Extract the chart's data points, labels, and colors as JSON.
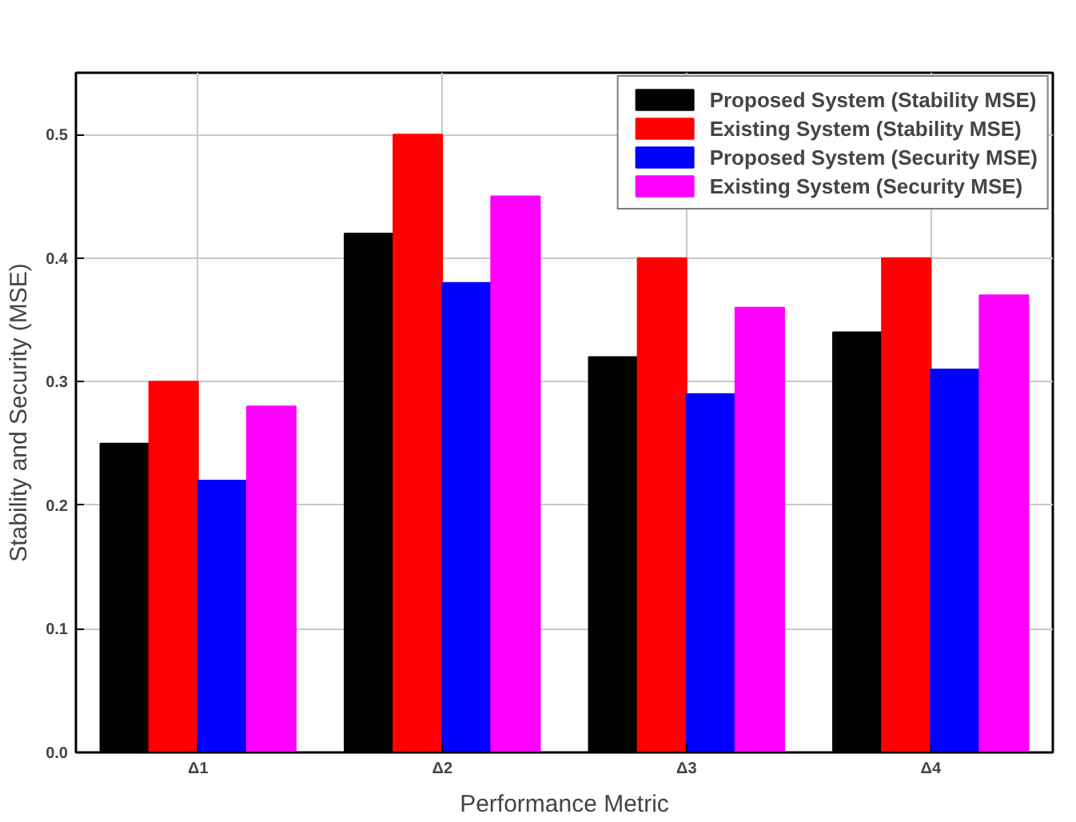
{
  "chart_data": {
    "type": "bar",
    "xlabel": "Performance Metric",
    "ylabel": "Stability and Security (MSE)",
    "categories": [
      "Δ1",
      "Δ2",
      "Δ3",
      "Δ4"
    ],
    "series": [
      {
        "name": "Proposed System (Stability MSE)",
        "color": "#000000",
        "values": [
          0.25,
          0.42,
          0.32,
          0.34
        ]
      },
      {
        "name": "Existing System (Stability MSE)",
        "color": "#ff0000",
        "values": [
          0.3,
          0.5,
          0.4,
          0.4
        ]
      },
      {
        "name": "Proposed System (Security MSE)",
        "color": "#0000ff",
        "values": [
          0.22,
          0.38,
          0.29,
          0.31
        ]
      },
      {
        "name": "Existing System (Security MSE)",
        "color": "#ff00ff",
        "values": [
          0.28,
          0.45,
          0.36,
          0.37
        ]
      }
    ],
    "ylim": [
      0,
      0.55
    ],
    "yticks": [
      {
        "value": 0,
        "label": "0.0"
      },
      0.1,
      0.2,
      0.3,
      0.4,
      0.5
    ],
    "grid": true,
    "legend": "top right"
  }
}
